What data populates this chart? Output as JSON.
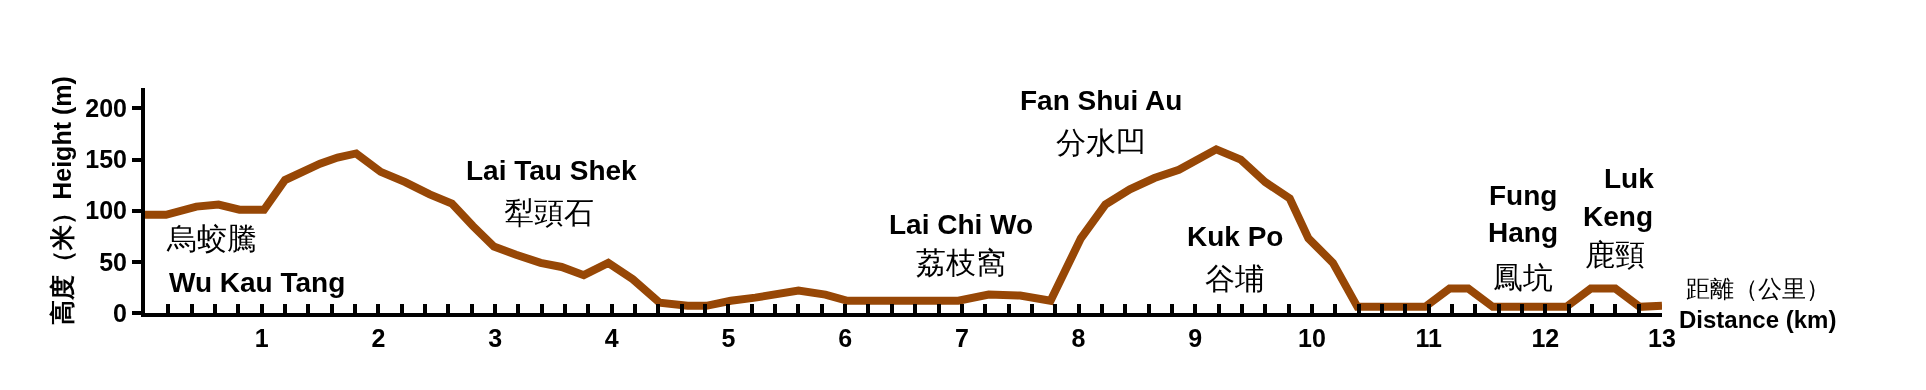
{
  "chart_data": {
    "type": "line",
    "xlabel": "距離（公里）\nDistance (km)",
    "ylabel": "高度（米）Height (m)",
    "x": [
      0,
      0.18,
      0.44,
      0.63,
      0.81,
      1.02,
      1.2,
      1.5,
      1.65,
      1.81,
      2.02,
      2.23,
      2.44,
      2.63,
      2.81,
      2.99,
      3.18,
      3.39,
      3.57,
      3.76,
      3.97,
      4.18,
      4.41,
      4.65,
      4.81,
      5.02,
      5.23,
      5.6,
      5.83,
      6.02,
      6.97,
      7.23,
      7.5,
      7.76,
      8.02,
      8.23,
      8.44,
      8.65,
      8.86,
      9.18,
      9.39,
      9.6,
      9.81,
      9.97,
      10.18,
      10.39,
      10.97,
      11.18,
      11.34,
      11.55,
      11.97,
      12.18,
      12.39,
      12.6,
      12.81,
      13.0
    ],
    "series": [
      {
        "color": "#974706",
        "values": [
          96,
          96,
          104,
          106,
          101,
          101,
          130,
          146,
          152,
          156,
          138,
          128,
          116,
          107,
          85,
          65,
          57,
          49,
          45,
          37,
          49,
          33,
          10,
          7,
          7,
          12,
          15,
          22,
          18,
          12,
          12,
          18,
          17,
          12,
          73,
          106,
          121,
          132,
          140,
          160,
          150,
          128,
          112,
          73,
          49,
          6,
          6,
          24,
          24,
          6,
          6,
          6,
          24,
          24,
          6,
          7
        ]
      }
    ],
    "xlim": [
      0,
      13
    ],
    "ylim": [
      0,
      220
    ],
    "yticks": [
      0,
      50,
      100,
      150,
      200
    ],
    "xticks": [
      {
        "value": 0.2,
        "label": null
      },
      {
        "value": 0.4,
        "label": null
      },
      {
        "value": 0.6,
        "label": null
      },
      {
        "value": 0.8,
        "label": null
      },
      1,
      {
        "value": 1.2,
        "label": null
      },
      {
        "value": 1.4,
        "label": null
      },
      {
        "value": 1.6,
        "label": null
      },
      {
        "value": 1.8,
        "label": null
      },
      2,
      {
        "value": 2.2,
        "label": null
      },
      {
        "value": 2.4,
        "label": null
      },
      {
        "value": 2.6,
        "label": null
      },
      {
        "value": 2.8,
        "label": null
      },
      3,
      {
        "value": 3.2,
        "label": null
      },
      {
        "value": 3.4,
        "label": null
      },
      {
        "value": 3.6,
        "label": null
      },
      {
        "value": 3.8,
        "label": null
      },
      4,
      {
        "value": 4.2,
        "label": null
      },
      {
        "value": 4.4,
        "label": null
      },
      {
        "value": 4.6,
        "label": null
      },
      {
        "value": 4.8,
        "label": null
      },
      5,
      {
        "value": 5.2,
        "label": null
      },
      {
        "value": 5.4,
        "label": null
      },
      {
        "value": 5.6,
        "label": null
      },
      {
        "value": 5.8,
        "label": null
      },
      6,
      {
        "value": 6.2,
        "label": null
      },
      {
        "value": 6.4,
        "label": null
      },
      {
        "value": 6.6,
        "label": null
      },
      {
        "value": 6.8,
        "label": null
      },
      7,
      {
        "value": 7.2,
        "label": null
      },
      {
        "value": 7.4,
        "label": null
      },
      {
        "value": 7.6,
        "label": null
      },
      {
        "value": 7.8,
        "label": null
      },
      8,
      {
        "value": 8.2,
        "label": null
      },
      {
        "value": 8.4,
        "label": null
      },
      {
        "value": 8.6,
        "label": null
      },
      {
        "value": 8.8,
        "label": null
      },
      9,
      {
        "value": 9.2,
        "label": null
      },
      {
        "value": 9.4,
        "label": null
      },
      {
        "value": 9.6,
        "label": null
      },
      {
        "value": 9.8,
        "label": null
      },
      10,
      {
        "value": 10.2,
        "label": null
      },
      {
        "value": 10.4,
        "label": null
      },
      {
        "value": 10.6,
        "label": null
      },
      {
        "value": 10.8,
        "label": null
      },
      11,
      {
        "value": 11.2,
        "label": null
      },
      {
        "value": 11.4,
        "label": null
      },
      {
        "value": 11.6,
        "label": null
      },
      {
        "value": 11.8,
        "label": null
      },
      12,
      {
        "value": 12.2,
        "label": null
      },
      {
        "value": 12.4,
        "label": null
      },
      {
        "value": 12.6,
        "label": null
      },
      {
        "value": 12.8,
        "label": null
      },
      13
    ],
    "marker": "none",
    "line_style": "solid",
    "annotations": [
      "烏蛟騰",
      "Wu Kau Tang",
      "Lai Tau Shek",
      "犁頭石",
      "Lai Chi Wo",
      "荔枝窩",
      "Fan Shui Au",
      "分水凹",
      "Kuk Po",
      "谷埔",
      "Fung",
      "Hang",
      "鳳坑",
      "Luk",
      "Keng",
      "鹿頸"
    ]
  }
}
